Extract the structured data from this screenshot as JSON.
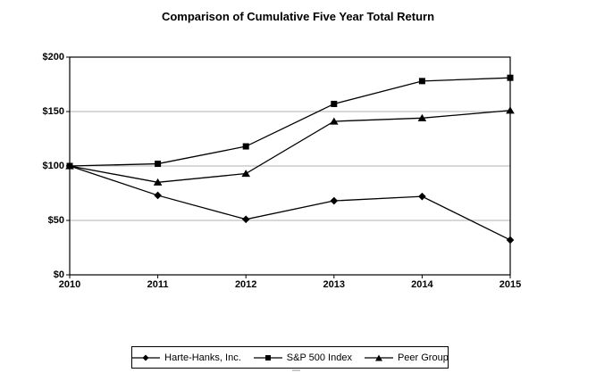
{
  "title": "Comparison of Cumulative Five Year Total Return",
  "chart_data": {
    "type": "line",
    "title": "Comparison of Cumulative Five Year Total Return",
    "categories": [
      "2010",
      "2011",
      "2012",
      "2013",
      "2014",
      "2015"
    ],
    "series": [
      {
        "name": "Harte-Hanks, Inc.",
        "marker": "diamond",
        "values": [
          100,
          73,
          51,
          68,
          72,
          32
        ]
      },
      {
        "name": "S&P 500 Index",
        "marker": "square",
        "values": [
          100,
          102,
          118,
          157,
          178,
          181
        ]
      },
      {
        "name": "Peer Group",
        "marker": "triangle",
        "values": [
          100,
          85,
          93,
          141,
          144,
          151
        ]
      }
    ],
    "xlabel": "",
    "ylabel": "",
    "ylim": [
      0,
      200
    ],
    "y_ticks": [
      "$0",
      "$50",
      "$100",
      "$150",
      "$200"
    ],
    "y_tick_values": [
      0,
      50,
      100,
      150,
      200
    ],
    "grid_values": [
      50,
      100,
      150
    ],
    "grid_on": true,
    "legend_position": "bottom",
    "line_color": "#000000",
    "grid_color": "#b0b0b0",
    "background_color": "#ffffff"
  }
}
